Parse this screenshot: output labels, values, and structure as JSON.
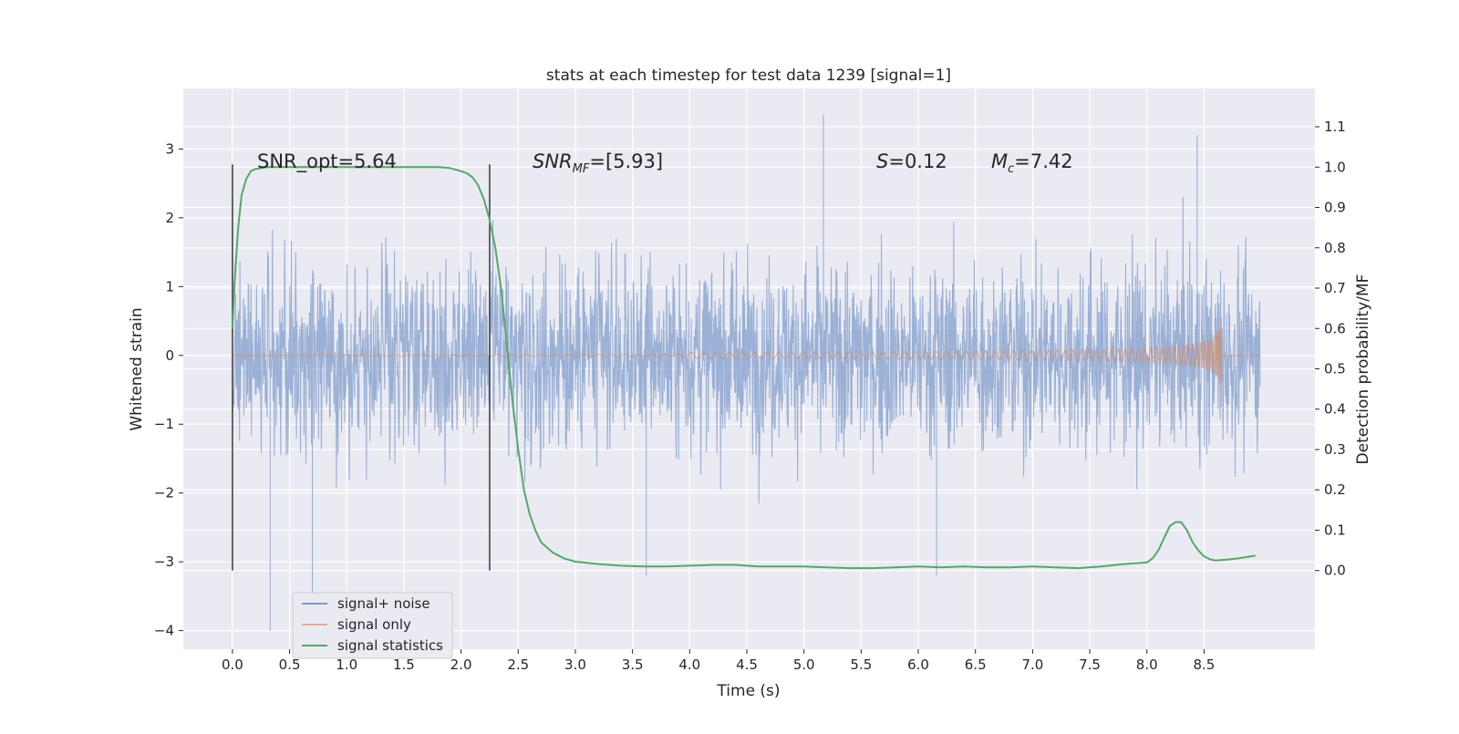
{
  "chart_data": {
    "type": "line",
    "title": "stats at each timestep for test data 1239 [signal=1]",
    "xlabel": "Time (s)",
    "ylabel": "Whitened strain",
    "y2label": "Detection probability/MF",
    "xlim": [
      -0.43,
      9.47
    ],
    "ylim": [
      -4.27,
      3.88
    ],
    "y2lim": [
      -0.195,
      1.195
    ],
    "x_ticks": [
      "0.0",
      "0.5",
      "1.0",
      "1.5",
      "2.0",
      "2.5",
      "3.0",
      "3.5",
      "4.0",
      "4.5",
      "5.0",
      "5.5",
      "6.0",
      "6.5",
      "7.0",
      "7.5",
      "8.0",
      "8.5"
    ],
    "x_tick_values": [
      0,
      0.5,
      1,
      1.5,
      2,
      2.5,
      3,
      3.5,
      4,
      4.5,
      5,
      5.5,
      6,
      6.5,
      7,
      7.5,
      8,
      8.5
    ],
    "y_ticks": [
      "−4",
      "−3",
      "−2",
      "−1",
      "0",
      "1",
      "2",
      "3"
    ],
    "y_tick_values": [
      -4,
      -3,
      -2,
      -1,
      0,
      1,
      2,
      3
    ],
    "y2_ticks": [
      "0.0",
      "0.1",
      "0.2",
      "0.3",
      "0.4",
      "0.5",
      "0.6",
      "0.7",
      "0.8",
      "0.9",
      "1.0",
      "1.1"
    ],
    "y2_tick_values": [
      0,
      0.1,
      0.2,
      0.3,
      0.4,
      0.5,
      0.6,
      0.7,
      0.8,
      0.9,
      1.0,
      1.1
    ],
    "grid": true,
    "legend_position": "lower-left",
    "annotations": {
      "snr_opt": "SNR_opt=5.64",
      "snr_mf_label": "SNR",
      "snr_mf_sub": "MF",
      "snr_mf_value": "=[5.93]",
      "s_label": "S",
      "s_value": "=0.12",
      "mc_label": "M",
      "mc_sub": "c",
      "mc_value": "=7.42"
    },
    "markers": [
      0.0,
      2.25
    ],
    "series": [
      {
        "name": "signal+ noise",
        "color": "#7f9ccb",
        "axis": "left",
        "kind": "noise",
        "x_range": [
          0.0,
          8.99
        ],
        "typical_envelope": [
          -1.6,
          1.6
        ],
        "extreme_peaks": [
          [
            0.33,
            -4.0
          ],
          [
            0.7,
            -3.6
          ],
          [
            5.17,
            3.5
          ],
          [
            8.44,
            3.2
          ],
          [
            3.62,
            -3.2
          ],
          [
            6.16,
            -3.2
          ]
        ]
      },
      {
        "name": "signal only",
        "color": "#dd8452",
        "axis": "left",
        "kind": "chirp",
        "x_range": [
          0.0,
          8.99
        ],
        "start_amplitude": 0.0,
        "merger_time": 8.65,
        "peak_values": [
          0.55,
          -0.75
        ]
      },
      {
        "name": "signal statistics",
        "color": "#55a868",
        "axis": "right",
        "x": [
          0.0,
          0.02,
          0.05,
          0.08,
          0.12,
          0.16,
          0.2,
          0.3,
          0.4,
          0.6,
          0.8,
          1.0,
          1.2,
          1.4,
          1.6,
          1.8,
          1.9,
          2.0,
          2.05,
          2.1,
          2.15,
          2.2,
          2.25,
          2.3,
          2.35,
          2.4,
          2.45,
          2.5,
          2.55,
          2.6,
          2.65,
          2.7,
          2.8,
          2.9,
          3.0,
          3.2,
          3.4,
          3.6,
          3.8,
          4.0,
          4.2,
          4.4,
          4.6,
          4.8,
          5.0,
          5.2,
          5.4,
          5.6,
          5.8,
          6.0,
          6.2,
          6.4,
          6.6,
          6.8,
          7.0,
          7.2,
          7.4,
          7.6,
          7.8,
          7.9,
          8.0,
          8.05,
          8.1,
          8.15,
          8.2,
          8.25,
          8.3,
          8.35,
          8.4,
          8.45,
          8.5,
          8.55,
          8.6,
          8.7,
          8.8,
          8.95
        ],
        "y": [
          0.6,
          0.72,
          0.85,
          0.93,
          0.97,
          0.99,
          0.995,
          1.0,
          1.0,
          1.0,
          1.0,
          1.0,
          1.0,
          1.0,
          1.0,
          1.0,
          0.998,
          0.99,
          0.985,
          0.975,
          0.955,
          0.92,
          0.87,
          0.8,
          0.7,
          0.56,
          0.42,
          0.3,
          0.2,
          0.14,
          0.1,
          0.07,
          0.045,
          0.03,
          0.022,
          0.016,
          0.012,
          0.01,
          0.01,
          0.012,
          0.014,
          0.014,
          0.01,
          0.01,
          0.01,
          0.008,
          0.006,
          0.006,
          0.008,
          0.01,
          0.008,
          0.01,
          0.008,
          0.008,
          0.01,
          0.008,
          0.006,
          0.01,
          0.016,
          0.018,
          0.02,
          0.03,
          0.05,
          0.08,
          0.11,
          0.12,
          0.12,
          0.1,
          0.07,
          0.05,
          0.035,
          0.028,
          0.025,
          0.027,
          0.03,
          0.037
        ]
      }
    ]
  }
}
